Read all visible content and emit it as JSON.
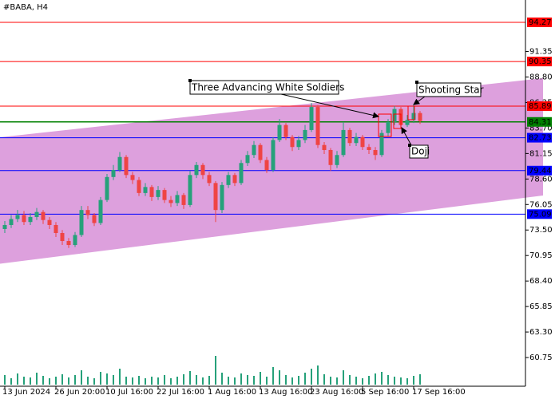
{
  "chart_data": {
    "type": "candlestick",
    "title": "#BABA, H4",
    "categories": [
      "13 Jun 2024",
      null,
      null,
      null,
      null,
      null,
      null,
      null,
      "26 Jun 20:00",
      null,
      null,
      null,
      null,
      null,
      null,
      null,
      "10 Jul 16:00",
      null,
      null,
      null,
      null,
      null,
      null,
      null,
      "22 Jul 16:00",
      null,
      null,
      null,
      null,
      null,
      null,
      null,
      "1 Aug 16:00",
      null,
      null,
      null,
      null,
      null,
      null,
      null,
      "13 Aug 16:00",
      null,
      null,
      null,
      null,
      null,
      null,
      null,
      "23 Aug 16:00",
      null,
      null,
      null,
      null,
      null,
      null,
      null,
      "5 Sep 16:00",
      null,
      null,
      null,
      null,
      null,
      null,
      null,
      "17 Sep 16:00",
      null
    ],
    "open": [
      73.6,
      74.0,
      74.6,
      75.0,
      74.3,
      74.8,
      75.3,
      74.5,
      74.0,
      73.2,
      72.4,
      72.0,
      73.0,
      75.5,
      75.0,
      74.2,
      76.5,
      78.8,
      79.5,
      80.8,
      79.0,
      78.5,
      77.2,
      77.8,
      76.8,
      77.5,
      76.5,
      76.2,
      77.0,
      76.0,
      79.0,
      80.0,
      79.0,
      78.2,
      75.5,
      78.0,
      79.0,
      78.2,
      80.2,
      81.0,
      82.0,
      80.5,
      79.5,
      82.5,
      84.0,
      82.8,
      81.8,
      82.5,
      83.5,
      85.8,
      82.0,
      81.5,
      80.0,
      81.0,
      83.5,
      82.2,
      82.8,
      81.8,
      81.5,
      81.0,
      83.2,
      84.3,
      85.6,
      84.0,
      84.5,
      85.2
    ],
    "high": [
      74.4,
      75.0,
      75.5,
      75.4,
      75.2,
      75.7,
      75.5,
      74.8,
      74.3,
      73.5,
      72.7,
      73.3,
      75.9,
      75.9,
      75.2,
      76.8,
      79.1,
      80.0,
      81.3,
      81.0,
      79.3,
      78.8,
      78.2,
      78.0,
      77.9,
      77.7,
      76.9,
      77.4,
      77.2,
      79.4,
      80.3,
      80.2,
      79.3,
      78.4,
      78.3,
      79.3,
      79.2,
      80.5,
      81.4,
      82.4,
      82.2,
      80.8,
      82.8,
      84.6,
      84.2,
      83.0,
      82.9,
      84.0,
      86.2,
      86.0,
      82.3,
      81.7,
      81.4,
      84.3,
      83.7,
      83.2,
      83.0,
      82.1,
      81.8,
      83.5,
      84.6,
      85.9,
      85.8,
      85.0,
      86.1,
      85.4
    ],
    "low": [
      73.2,
      73.7,
      74.3,
      74.0,
      74.0,
      74.5,
      74.1,
      73.6,
      72.8,
      72.0,
      71.7,
      71.8,
      72.8,
      74.6,
      73.9,
      74.0,
      76.3,
      78.5,
      79.3,
      78.7,
      78.1,
      76.9,
      76.9,
      76.4,
      76.5,
      76.2,
      75.8,
      75.9,
      75.6,
      75.8,
      78.7,
      78.6,
      77.9,
      74.3,
      75.2,
      77.7,
      77.9,
      78.0,
      79.9,
      80.7,
      80.2,
      79.2,
      79.3,
      82.3,
      82.5,
      81.4,
      81.5,
      82.2,
      83.3,
      81.7,
      81.1,
      79.4,
      79.7,
      80.8,
      81.9,
      81.9,
      81.5,
      81.1,
      80.5,
      80.8,
      82.9,
      84.0,
      83.7,
      83.8,
      84.2,
      84.1
    ],
    "close": [
      74.0,
      74.6,
      75.0,
      74.3,
      74.8,
      75.3,
      74.5,
      74.0,
      73.2,
      72.4,
      72.0,
      73.0,
      75.5,
      75.0,
      74.2,
      76.5,
      78.8,
      79.5,
      80.8,
      79.0,
      78.5,
      77.2,
      77.8,
      76.8,
      77.5,
      76.5,
      76.2,
      77.0,
      76.0,
      79.0,
      80.0,
      79.0,
      78.2,
      75.5,
      78.0,
      79.0,
      78.2,
      80.2,
      81.0,
      82.0,
      80.5,
      79.5,
      82.5,
      84.0,
      82.8,
      81.8,
      82.5,
      83.5,
      85.8,
      82.0,
      81.5,
      80.0,
      81.0,
      83.5,
      82.2,
      82.8,
      81.8,
      81.5,
      81.0,
      83.2,
      84.3,
      85.6,
      84.0,
      84.5,
      85.2,
      84.4
    ],
    "volume": [
      12,
      8,
      14,
      10,
      9,
      15,
      11,
      8,
      10,
      13,
      9,
      12,
      18,
      10,
      8,
      16,
      14,
      12,
      20,
      10,
      9,
      11,
      8,
      10,
      9,
      12,
      8,
      10,
      13,
      17,
      12,
      9,
      11,
      36,
      15,
      10,
      9,
      14,
      12,
      11,
      16,
      10,
      22,
      18,
      12,
      9,
      11,
      15,
      20,
      24,
      13,
      10,
      9,
      18,
      12,
      10,
      8,
      11,
      14,
      16,
      12,
      10,
      9,
      8,
      11,
      13
    ],
    "up_color": "#26a17a",
    "down_color": "#ef4444",
    "volume_color": "#26a17a",
    "ylim": [
      57.8,
      96.5
    ],
    "yticks": [
      60.75,
      {
        "value": 63.3,
        "label": "63.30"
      },
      65.85,
      {
        "value": 68.4,
        "label": "68.40"
      },
      70.95,
      {
        "value": 73.5,
        "label": "73.50"
      },
      76.05,
      {
        "value": 78.6,
        "label": "78.60"
      },
      81.15,
      {
        "value": 83.7,
        "label": "83.70"
      },
      86.25,
      {
        "value": 88.8,
        "label": "88.80"
      },
      91.35
    ],
    "levels": [
      {
        "value": 94.27,
        "color": "#ff0000"
      },
      {
        "value": 90.35,
        "color": "#ff0000"
      },
      {
        "value": 85.89,
        "color": "#ff0000"
      },
      {
        "value": 84.31,
        "color": "#008000"
      },
      {
        "value": 82.73,
        "color": "#0000ff"
      },
      {
        "value": 79.44,
        "color": "#0000ff"
      },
      {
        "value": 75.09,
        "color": "#0000ff"
      }
    ],
    "channel": {
      "upper": [
        82.78,
        88.68
      ],
      "lower": [
        70.13,
        76.95
      ],
      "color": "#dda0dd"
    },
    "annotations": [
      {
        "text": "Three Advancing White Soldiers"
      },
      {
        "text": "Shooting Star"
      },
      {
        "text": "Doji"
      }
    ]
  }
}
